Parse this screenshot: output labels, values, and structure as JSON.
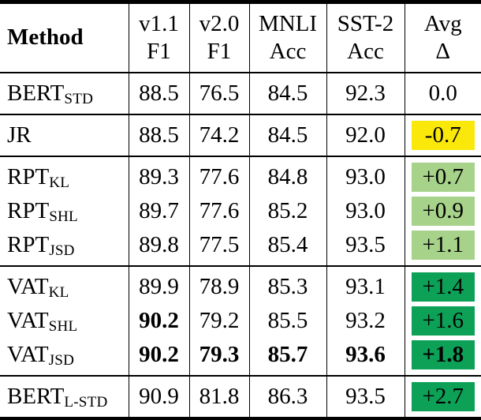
{
  "colors": {
    "negative": "#FBE80B",
    "positive_weak": "#A6D289",
    "positive_strong": "#0DA157"
  },
  "header": {
    "method": "Method",
    "cols": [
      {
        "line1": "v1.1",
        "line2": "F1"
      },
      {
        "line1": "v2.0",
        "line2": "F1"
      },
      {
        "line1": "MNLI",
        "line2": "Acc"
      },
      {
        "line1": "SST-2",
        "line2": "Acc"
      },
      {
        "line1": "Avg",
        "line2": "Δ"
      }
    ]
  },
  "rows": [
    {
      "method": "BERT",
      "sub": "STD",
      "v11": "88.5",
      "v20": "76.5",
      "mnli": "84.5",
      "sst2": "92.3",
      "delta": "0.0"
    },
    {
      "method": "JR",
      "sub": "",
      "v11": "88.5",
      "v20": "74.2",
      "mnli": "84.5",
      "sst2": "92.0",
      "delta": "-0.7"
    },
    {
      "method": "RPT",
      "sub": "KL",
      "v11": "89.3",
      "v20": "77.6",
      "mnli": "84.8",
      "sst2": "93.0",
      "delta": "+0.7"
    },
    {
      "method": "RPT",
      "sub": "SHL",
      "v11": "89.7",
      "v20": "77.6",
      "mnli": "85.2",
      "sst2": "93.0",
      "delta": "+0.9"
    },
    {
      "method": "RPT",
      "sub": "JSD",
      "v11": "89.8",
      "v20": "77.5",
      "mnli": "85.4",
      "sst2": "93.5",
      "delta": "+1.1"
    },
    {
      "method": "VAT",
      "sub": "KL",
      "v11": "89.9",
      "v20": "78.9",
      "mnli": "85.3",
      "sst2": "93.1",
      "delta": "+1.4"
    },
    {
      "method": "VAT",
      "sub": "SHL",
      "v11": "90.2",
      "v20": "79.2",
      "mnli": "85.5",
      "sst2": "93.2",
      "delta": "+1.6"
    },
    {
      "method": "VAT",
      "sub": "JSD",
      "v11": "90.2",
      "v20": "79.3",
      "mnli": "85.7",
      "sst2": "93.6",
      "delta": "+1.8"
    },
    {
      "method": "BERT",
      "sub": "L-STD",
      "v11": "90.9",
      "v20": "81.8",
      "mnli": "86.3",
      "sst2": "93.5",
      "delta": "+2.7"
    }
  ]
}
